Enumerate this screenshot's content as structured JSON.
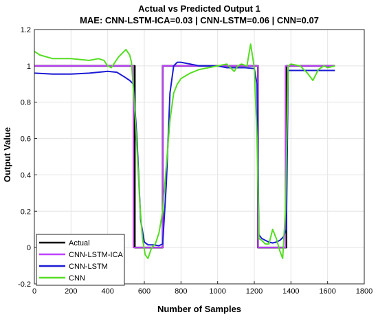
{
  "chart_data": {
    "type": "line",
    "title": "Actual vs Predicted Output 1",
    "subtitle": "MAE: CNN-LSTM-ICA=0.03 | CNN-LSTM=0.06 | CNN=0.07",
    "xlabel": "Number of Samples",
    "ylabel": "Output Value",
    "xlim": [
      0,
      1800
    ],
    "ylim": [
      -0.2,
      1.2
    ],
    "xticks": [
      0,
      200,
      400,
      600,
      800,
      1000,
      1200,
      1400,
      1600,
      1800
    ],
    "yticks": [
      -0.2,
      0,
      0.2,
      0.4,
      0.6,
      0.8,
      1,
      1.2
    ],
    "xtick_labels": [
      "0",
      "200",
      "400",
      "600",
      "800",
      "1000",
      "1200",
      "1400",
      "1600",
      "1800"
    ],
    "ytick_labels": [
      "-0.2",
      "0",
      "0.2",
      "0.4",
      "0.6",
      "0.8",
      "1",
      "1.2"
    ],
    "grid": true,
    "legend_position": "bottom-left",
    "series": [
      {
        "name": "Actual",
        "color": "#000000",
        "x": [
          0,
          548,
          548,
          700,
          700,
          1220,
          1220,
          1375,
          1375,
          1640
        ],
        "y": [
          1,
          1,
          0,
          0,
          1,
          1,
          0,
          0,
          1,
          1
        ]
      },
      {
        "name": "CNN-LSTM-ICA",
        "color": "#c040ff",
        "x": [
          0,
          540,
          540,
          700,
          700,
          1220,
          1220,
          1370,
          1370,
          1640
        ],
        "y": [
          1,
          1,
          0,
          0,
          1,
          1,
          0,
          0,
          1,
          1
        ]
      },
      {
        "name": "CNN-LSTM",
        "color": "#1a1ad6",
        "x": [
          0,
          100,
          200,
          300,
          400,
          450,
          490,
          520,
          540,
          560,
          580,
          600,
          620,
          650,
          680,
          700,
          720,
          740,
          760,
          780,
          800,
          850,
          900,
          950,
          1000,
          1050,
          1100,
          1150,
          1200,
          1215,
          1225,
          1240,
          1260,
          1280,
          1300,
          1320,
          1340,
          1360,
          1375,
          1385,
          1400,
          1500,
          1640
        ],
        "y": [
          0.96,
          0.955,
          0.955,
          0.96,
          0.97,
          0.965,
          0.94,
          0.92,
          0.9,
          0.6,
          0.15,
          0.03,
          0.015,
          0.015,
          0.01,
          0.02,
          0.35,
          0.85,
          1.0,
          1.02,
          1.02,
          1.01,
          1.0,
          1.0,
          1.0,
          0.99,
          0.99,
          0.99,
          0.985,
          0.9,
          0.07,
          0.05,
          0.04,
          0.03,
          0.025,
          0.03,
          0.04,
          0.06,
          0.1,
          0.975,
          0.975,
          0.975,
          0.975
        ]
      },
      {
        "name": "CNN",
        "color": "#55dd22",
        "x": [
          0,
          30,
          100,
          200,
          300,
          350,
          380,
          400,
          420,
          440,
          460,
          480,
          500,
          520,
          530,
          545,
          560,
          575,
          590,
          605,
          620,
          640,
          660,
          680,
          700,
          720,
          740,
          760,
          780,
          800,
          850,
          900,
          950,
          1000,
          1050,
          1090,
          1110,
          1130,
          1160,
          1180,
          1200,
          1215,
          1225,
          1240,
          1260,
          1280,
          1300,
          1320,
          1340,
          1355,
          1370,
          1385,
          1400,
          1450,
          1490,
          1520,
          1550,
          1580,
          1600,
          1640
        ],
        "y": [
          1.08,
          1.06,
          1.04,
          1.04,
          1.03,
          1.04,
          1.03,
          1.0,
          0.99,
          1.02,
          1.05,
          1.07,
          1.09,
          1.06,
          1.02,
          0.8,
          0.55,
          0.25,
          0.05,
          -0.04,
          -0.06,
          0.0,
          0.02,
          0.08,
          0.2,
          0.45,
          0.7,
          0.85,
          0.9,
          0.93,
          0.96,
          0.98,
          0.99,
          1.0,
          1.01,
          0.97,
          1.0,
          1.01,
          1.0,
          1.12,
          0.99,
          0.6,
          0.05,
          0.04,
          0.02,
          0.02,
          0.1,
          0.05,
          -0.02,
          -0.06,
          0.2,
          1.0,
          1.01,
          1.0,
          0.96,
          0.92,
          0.98,
          1.0,
          0.99,
          1.0
        ]
      }
    ]
  }
}
